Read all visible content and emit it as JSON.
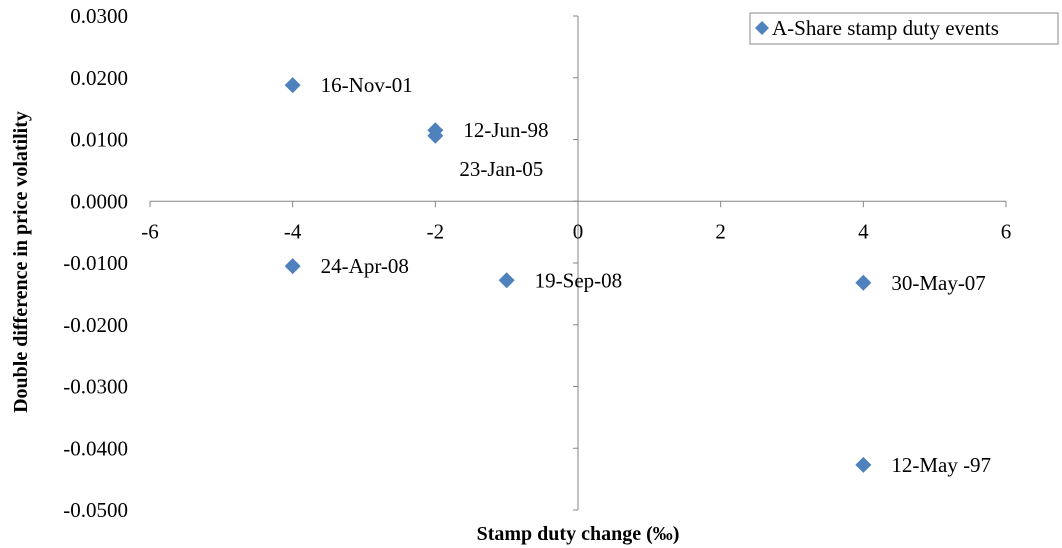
{
  "chart_data": {
    "type": "scatter",
    "xlabel": "Stamp duty change (‰)",
    "ylabel": "Double difference in price volatility",
    "xlim": [
      -6,
      6
    ],
    "ylim": [
      -0.05,
      0.03
    ],
    "x_ticks": [
      "-6",
      "-4",
      "-2",
      "0",
      "2",
      "4",
      "6"
    ],
    "y_ticks": [
      "0.0300",
      "0.0200",
      "0.0100",
      "0.0000",
      "-0.0100",
      "-0.0200",
      "-0.0300",
      "-0.0400",
      "-0.0500"
    ],
    "grid": false,
    "legend_position": "top-right",
    "marker_color": "#4F81BD",
    "series": [
      {
        "name": "A-Share stamp duty events",
        "points": [
          {
            "x": -4,
            "y": 0.0188,
            "label": "16-Nov-01"
          },
          {
            "x": -2,
            "y": 0.0115,
            "label": "12-Jun-98"
          },
          {
            "x": -2,
            "y": 0.0106,
            "label": "23-Jan-05"
          },
          {
            "x": -4,
            "y": -0.0105,
            "label": "24-Apr-08"
          },
          {
            "x": -1,
            "y": -0.0128,
            "label": "19-Sep-08"
          },
          {
            "x": 4,
            "y": -0.0132,
            "label": "30-May-07"
          },
          {
            "x": 4,
            "y": -0.0427,
            "label": "12-May -97"
          }
        ]
      }
    ]
  }
}
